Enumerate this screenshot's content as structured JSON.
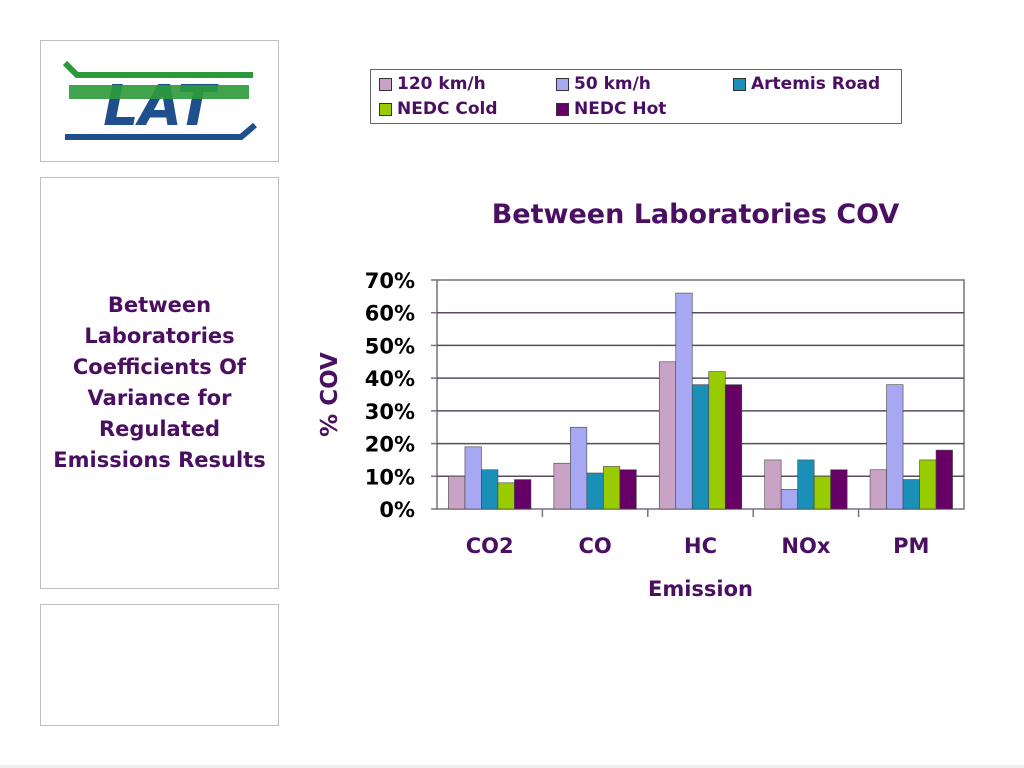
{
  "side_panel": {
    "title": "Between\nLaboratories\nCoefficients Of\nVariance for\nRegulated\nEmissions Results"
  },
  "logo": {
    "text": "LAT",
    "colors": {
      "green": "#2c9a3a",
      "blue": "#1f4f8c"
    }
  },
  "colors": {
    "text": "#4b0f62",
    "plot_border": "#7a6f80"
  },
  "chart_data": {
    "type": "bar",
    "title": "Between Laboratories COV",
    "xlabel": "Emission",
    "ylabel": "% COV",
    "categories": [
      "CO2",
      "CO",
      "HC",
      "NOx",
      "PM"
    ],
    "ylim": [
      0,
      70
    ],
    "yticks": [
      "0%",
      "10%",
      "20%",
      "30%",
      "40%",
      "50%",
      "60%",
      "70%"
    ],
    "grid": true,
    "legend_position": "top",
    "series": [
      {
        "name": "120 km/h",
        "color": "#c9a3c5",
        "values": [
          10,
          14,
          45,
          15,
          12
        ]
      },
      {
        "name": "50 km/h",
        "color": "#a7a7f2",
        "values": [
          19,
          25,
          66,
          6,
          38
        ]
      },
      {
        "name": "Artemis Road",
        "color": "#1a8fb8",
        "values": [
          12,
          11,
          38,
          15,
          9
        ]
      },
      {
        "name": "NEDC Cold",
        "color": "#99cc00",
        "values": [
          8,
          13,
          42,
          10,
          15
        ]
      },
      {
        "name": "NEDC Hot",
        "color": "#660066",
        "values": [
          9,
          12,
          38,
          12,
          18
        ]
      }
    ]
  }
}
